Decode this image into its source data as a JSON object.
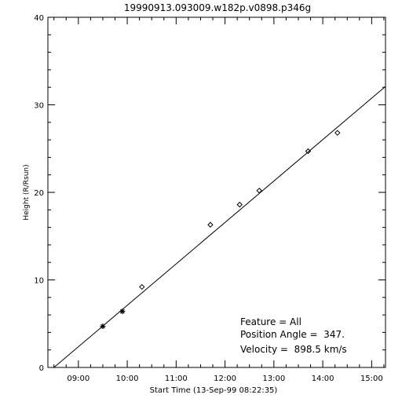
{
  "chart_data": {
    "type": "scatter",
    "title": "19990913.093009.w182p.v0898.p346g",
    "xlabel": "Start Time (13-Sep-99 08:22:35)",
    "ylabel": "Height (R/Rsun)",
    "xlim": [
      "08:22:35",
      "15:17:00"
    ],
    "ylim": [
      0,
      40
    ],
    "x_ticks": [
      "09:00",
      "10:00",
      "11:00",
      "12:00",
      "13:00",
      "14:00",
      "15:00"
    ],
    "y_ticks": [
      0,
      10,
      20,
      30,
      40
    ],
    "grid": false,
    "series": [
      {
        "marker": "asterisk",
        "points": [
          {
            "x": "09:30",
            "y": 4.7
          },
          {
            "x": "09:54",
            "y": 6.4
          }
        ]
      },
      {
        "marker": "diamond",
        "points": [
          {
            "x": "10:18",
            "y": 9.2
          },
          {
            "x": "11:42",
            "y": 16.3
          },
          {
            "x": "12:18",
            "y": 18.6
          },
          {
            "x": "12:42",
            "y": 20.2
          },
          {
            "x": "13:42",
            "y": 24.7
          },
          {
            "x": "14:18",
            "y": 26.8
          }
        ]
      }
    ],
    "fit_line": [
      {
        "x": "08:30",
        "y": 0
      },
      {
        "x": "15:17",
        "y": 32.1
      }
    ],
    "annotations": [
      "Feature = All",
      "Position Angle =  347.",
      "Velocity =  898.5 km/s"
    ]
  }
}
